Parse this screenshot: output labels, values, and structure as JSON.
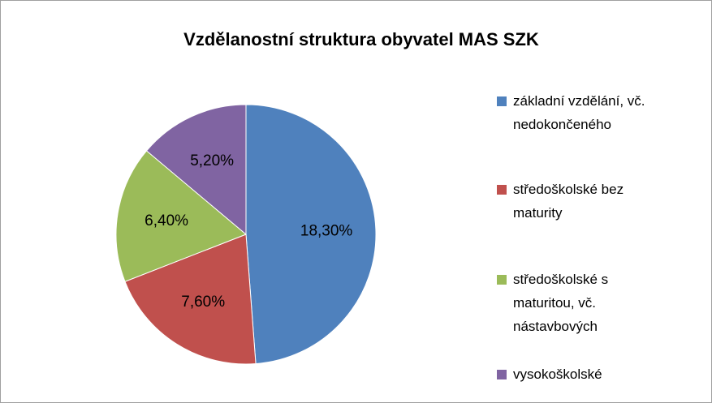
{
  "chart_data": {
    "type": "pie",
    "title": "Vzdělanostní struktura obyvatel MAS SZK",
    "categories": [
      "základní vzdělání, vč. nedokončeného",
      "středoškolské bez maturity",
      "středoškolské s maturitou, vč. nástavbových",
      "vysokoškolské"
    ],
    "values": [
      18.3,
      7.6,
      6.4,
      5.2
    ],
    "value_labels": [
      "18,30%",
      "7,60%",
      "6,40%",
      "5,20%"
    ],
    "colors": [
      "#4f81bd",
      "#c0504d",
      "#9bbb59",
      "#8064a2"
    ],
    "legend": "right"
  }
}
